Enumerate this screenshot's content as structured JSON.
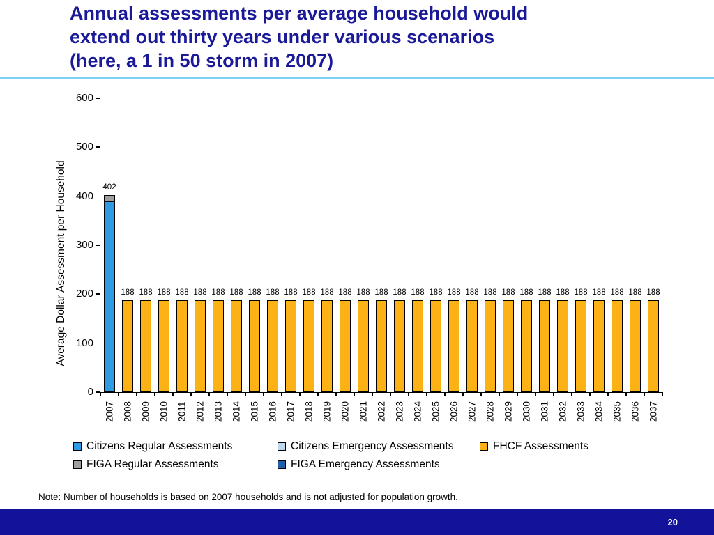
{
  "slide": {
    "title_lines": [
      "Annual assessments per average household would",
      "extend out thirty years under various scenarios",
      "(here, a 1 in 50 storm in 2007)"
    ],
    "note": "Note: Number of households is based on 2007 households and is not adjusted for population growth.",
    "page_number": "20"
  },
  "colors": {
    "title": "#1A1A99",
    "divider": "#7CD2F2",
    "footer": "#12129B",
    "citizens_regular": "#2E9BE4",
    "citizens_emergency": "#BDD7EE",
    "fhcf": "#FCB116",
    "figa_regular": "#9E9E9E",
    "figa_emergency": "#1F5FA8"
  },
  "chart_data": {
    "type": "bar",
    "stacked": true,
    "title": "",
    "xlabel": "",
    "ylabel": "Average Dollar Assessment per Household",
    "ylim": [
      0,
      600
    ],
    "yticks": [
      0,
      100,
      200,
      300,
      400,
      500,
      600
    ],
    "grid": false,
    "legend_position": "bottom",
    "categories": [
      "2007",
      "2008",
      "2009",
      "2010",
      "2011",
      "2012",
      "2013",
      "2014",
      "2015",
      "2016",
      "2017",
      "2018",
      "2019",
      "2020",
      "2021",
      "2022",
      "2023",
      "2024",
      "2025",
      "2026",
      "2027",
      "2028",
      "2029",
      "2030",
      "2031",
      "2032",
      "2033",
      "2034",
      "2035",
      "2036",
      "2037"
    ],
    "series": [
      {
        "name": "Citizens Regular Assessments",
        "color_key": "citizens_regular",
        "values": [
          390,
          0,
          0,
          0,
          0,
          0,
          0,
          0,
          0,
          0,
          0,
          0,
          0,
          0,
          0,
          0,
          0,
          0,
          0,
          0,
          0,
          0,
          0,
          0,
          0,
          0,
          0,
          0,
          0,
          0,
          0
        ]
      },
      {
        "name": "Citizens Emergency Assessments",
        "color_key": "citizens_emergency",
        "values": [
          0,
          0,
          0,
          0,
          0,
          0,
          0,
          0,
          0,
          0,
          0,
          0,
          0,
          0,
          0,
          0,
          0,
          0,
          0,
          0,
          0,
          0,
          0,
          0,
          0,
          0,
          0,
          0,
          0,
          0,
          0
        ]
      },
      {
        "name": "FHCF Assessments",
        "color_key": "fhcf",
        "values": [
          0,
          188,
          188,
          188,
          188,
          188,
          188,
          188,
          188,
          188,
          188,
          188,
          188,
          188,
          188,
          188,
          188,
          188,
          188,
          188,
          188,
          188,
          188,
          188,
          188,
          188,
          188,
          188,
          188,
          188,
          188
        ]
      },
      {
        "name": "FIGA Emergency Assessments",
        "color_key": "figa_emergency",
        "values": [
          0,
          0,
          0,
          0,
          0,
          0,
          0,
          0,
          0,
          0,
          0,
          0,
          0,
          0,
          0,
          0,
          0,
          0,
          0,
          0,
          0,
          0,
          0,
          0,
          0,
          0,
          0,
          0,
          0,
          0,
          0
        ]
      },
      {
        "name": "FIGA Regular Assessments",
        "color_key": "figa_regular",
        "values": [
          12,
          0,
          0,
          0,
          0,
          0,
          0,
          0,
          0,
          0,
          0,
          0,
          0,
          0,
          0,
          0,
          0,
          0,
          0,
          0,
          0,
          0,
          0,
          0,
          0,
          0,
          0,
          0,
          0,
          0,
          0
        ]
      }
    ],
    "bar_labels": [
      "402",
      "188",
      "188",
      "188",
      "188",
      "188",
      "188",
      "188",
      "188",
      "188",
      "188",
      "188",
      "188",
      "188",
      "188",
      "188",
      "188",
      "188",
      "188",
      "188",
      "188",
      "188",
      "188",
      "188",
      "188",
      "188",
      "188",
      "188",
      "188",
      "188",
      "188"
    ],
    "legend": [
      [
        {
          "label": "Citizens Regular Assessments",
          "color_key": "citizens_regular"
        },
        {
          "label": "Citizens Emergency Assessments",
          "color_key": "citizens_emergency"
        },
        {
          "label": "FHCF Assessments",
          "color_key": "fhcf"
        }
      ],
      [
        {
          "label": "FIGA Regular Assessments",
          "color_key": "figa_regular"
        },
        {
          "label": "FIGA Emergency Assessments",
          "color_key": "figa_emergency"
        }
      ]
    ]
  }
}
